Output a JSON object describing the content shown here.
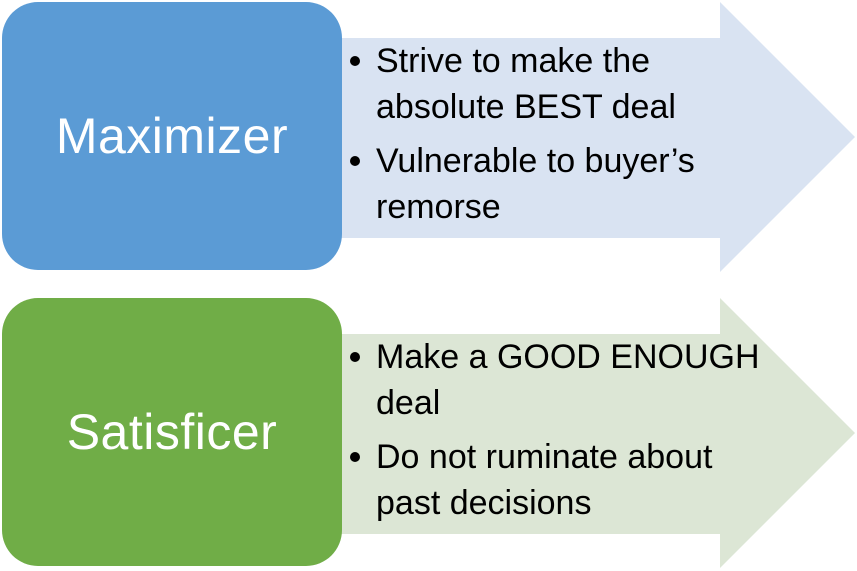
{
  "colors": {
    "maximizer_box": "#5B9BD5",
    "maximizer_arrow": "#D9E3F2",
    "satisficer_box": "#70AD47",
    "satisficer_arrow": "#DCE6D5",
    "box_text": "#FFFFFF",
    "bullet_text": "#000000"
  },
  "rows": [
    {
      "label": "Maximizer",
      "bullets": [
        "Strive to make the absolute BEST deal",
        "Vulnerable to buyer’s remorse"
      ]
    },
    {
      "label": "Satisficer",
      "bullets": [
        "Make a GOOD ENOUGH deal",
        "Do not ruminate about past decisions"
      ]
    }
  ]
}
